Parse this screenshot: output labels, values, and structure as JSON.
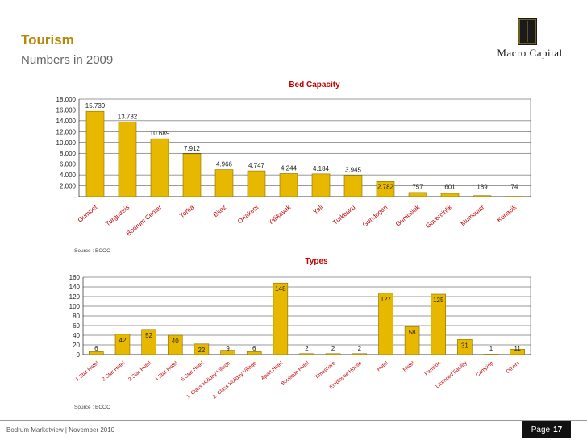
{
  "page": {
    "title": "Tourism",
    "subtitle": "Numbers in 2009",
    "logo_text": "Macro Capital",
    "logo_mark": "MC",
    "footer_text": "Bodrum Marketview  |  November 2010",
    "page_label": "Page",
    "page_number": "17",
    "colors": {
      "accent": "#b8860b",
      "bar": "#e6b800",
      "label_red": "#c00000"
    }
  },
  "chart_data": [
    {
      "type": "bar",
      "title": "Bed Capacity",
      "source": "Source : BCOC",
      "categories": [
        "Gumbet",
        "Turgutreis",
        "Bodrum Center",
        "Torba",
        "Bitez",
        "Ortakent",
        "Yalikavak",
        "Yali",
        "Turkbuku",
        "Gundogan",
        "Gumusluk",
        "Guvercinlik",
        "Mumcular",
        "Konacik"
      ],
      "values": [
        15739,
        13732,
        10689,
        7912,
        4966,
        4747,
        4244,
        4184,
        3945,
        2782,
        757,
        601,
        189,
        74
      ],
      "value_labels": [
        "15.739",
        "13.732",
        "10.689",
        "7.912",
        "4.966",
        "4.747",
        "4.244",
        "4.184",
        "3.945",
        "2.782",
        "757",
        "601",
        "189",
        "74"
      ],
      "ylim": [
        0,
        18000
      ],
      "yticks": [
        "-",
        "2.000",
        "4.000",
        "6.000",
        "8.000",
        "10.000",
        "12.000",
        "14.000",
        "16.000",
        "18.000"
      ],
      "grid": true
    },
    {
      "type": "bar",
      "title": "Types",
      "source": "Source : BCOC",
      "categories": [
        "1 Star Hotel",
        "2 Star Hotel",
        "3 Star Hotel",
        "4 Star Hotel",
        "5 Star Hotel",
        "1. Class Holiday Village",
        "2. Class Holiday Village",
        "Apart Hotel",
        "Boutique Hotel",
        "Timeshare",
        "Employee House",
        "Hotel",
        "Motel",
        "Pension",
        "Licenced Facility",
        "Camping",
        "Others"
      ],
      "values": [
        6,
        42,
        52,
        40,
        22,
        9,
        6,
        148,
        2,
        2,
        2,
        127,
        58,
        125,
        31,
        1,
        11
      ],
      "value_labels": [
        "6",
        "42",
        "52",
        "40",
        "22",
        "9",
        "6",
        "148",
        "2",
        "2",
        "2",
        "127",
        "58",
        "125",
        "31",
        "1",
        "11"
      ],
      "ylim": [
        0,
        160
      ],
      "yticks": [
        "0",
        "20",
        "40",
        "60",
        "80",
        "100",
        "120",
        "140",
        "160"
      ],
      "grid": true
    }
  ]
}
